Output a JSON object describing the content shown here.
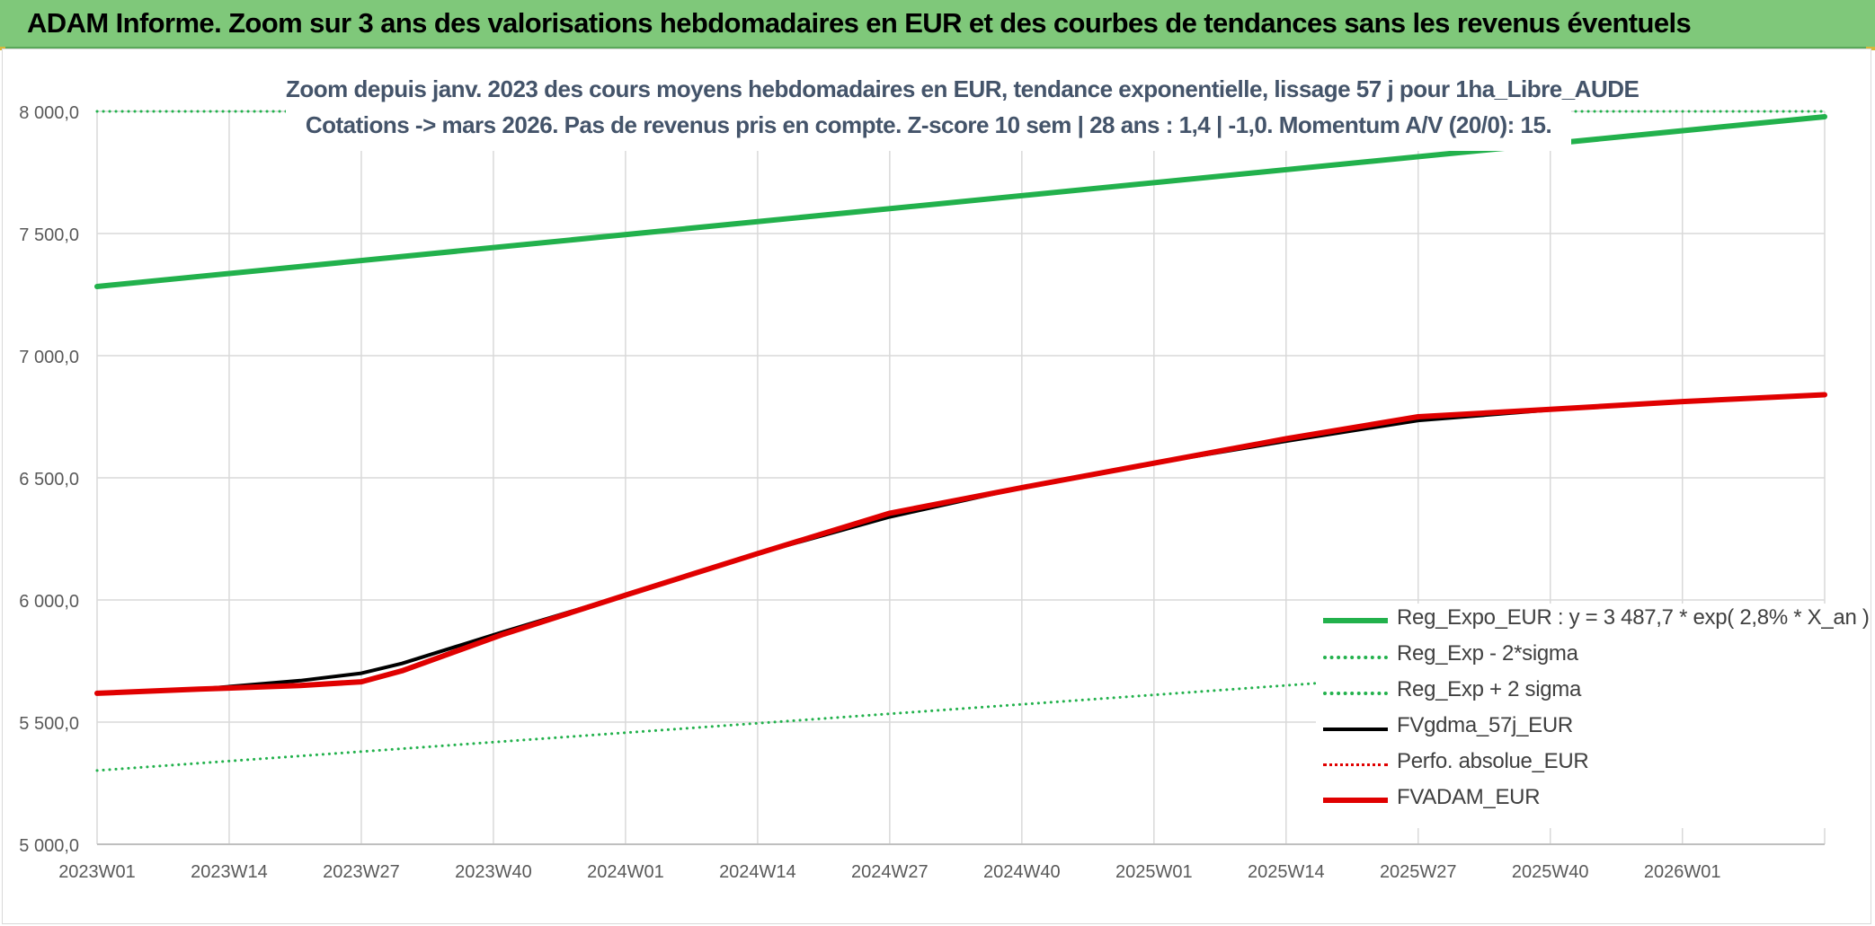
{
  "header": {
    "title": "ADAM Informe. Zoom sur 3 ans des valorisations hebdomadaires en EUR et des courbes de tendances sans les revenus éventuels"
  },
  "chart_data": {
    "type": "line",
    "title_lines": [
      "Zoom depuis janv. 2023 des cours moyens hebdomadaires en EUR, tendance exponentielle, lissage 57 j pour 1ha_Libre_AUDE",
      "Cotations -> mars 2026. Pas de revenus pris en compte. Z-score 10 sem | 28 ans : 1,4 | -1,0. Momentum A/V (20/0): 15."
    ],
    "x_tick_labels": [
      "2023W01",
      "2023W14",
      "2023W27",
      "2023W40",
      "2024W01",
      "2024W14",
      "2024W27",
      "2024W40",
      "2025W01",
      "2025W14",
      "2025W27",
      "2025W40",
      "2026W01"
    ],
    "y_tick_labels": [
      "8 000,0",
      "7 500,0",
      "7 000,0",
      "6 500,0",
      "6 000,0",
      "5 500,0",
      "5 000,0"
    ],
    "ylim": [
      5000,
      8000
    ],
    "grid": true,
    "legend_position": "bottom-right",
    "week_start": 0,
    "week_end": 170,
    "series": [
      {
        "name": "Reg_Expo_EUR : y = 3 487,7 * exp( 2,8% *  X_an )",
        "color": "#22b14c",
        "style": "solid",
        "width": 6,
        "points": [
          [
            0,
            7283
          ],
          [
            170,
            7978
          ]
        ]
      },
      {
        "name": "Reg_Exp - 2*sigma",
        "color": "#22b14c",
        "style": "dotted",
        "width": 3,
        "points": [
          [
            0,
            5302
          ],
          [
            170,
            5808
          ]
        ]
      },
      {
        "name": "Reg_Exp + 2 sigma",
        "color": "#22b14c",
        "style": "dotted",
        "width": 3,
        "points": [
          [
            0,
            8000
          ],
          [
            170,
            8000
          ]
        ]
      },
      {
        "name": "FVgdma_57j_EUR",
        "color": "#000000",
        "style": "solid",
        "width": 4,
        "points": [
          [
            0,
            5618
          ],
          [
            10,
            5635
          ],
          [
            20,
            5670
          ],
          [
            26,
            5700
          ],
          [
            30,
            5740
          ],
          [
            40,
            5870
          ],
          [
            52,
            6020
          ],
          [
            65,
            6190
          ],
          [
            78,
            6340
          ],
          [
            91,
            6460
          ],
          [
            104,
            6560
          ],
          [
            117,
            6650
          ],
          [
            130,
            6735
          ],
          [
            143,
            6778
          ],
          [
            156,
            6810
          ],
          [
            170,
            6838
          ]
        ]
      },
      {
        "name": "Perfo. absolue_EUR",
        "color": "#e00000",
        "style": "dotted",
        "width": 3,
        "points": [
          [
            0,
            5618
          ],
          [
            10,
            5635
          ],
          [
            20,
            5650
          ],
          [
            26,
            5665
          ],
          [
            30,
            5710
          ],
          [
            40,
            5860
          ],
          [
            52,
            6020
          ],
          [
            65,
            6190
          ],
          [
            78,
            6355
          ],
          [
            91,
            6460
          ],
          [
            104,
            6560
          ],
          [
            117,
            6660
          ],
          [
            130,
            6750
          ],
          [
            143,
            6780
          ],
          [
            156,
            6812
          ],
          [
            170,
            6840
          ]
        ]
      },
      {
        "name": "FVADAM_EUR",
        "color": "#e00000",
        "style": "solid",
        "width": 6,
        "points": [
          [
            0,
            5618
          ],
          [
            10,
            5635
          ],
          [
            20,
            5650
          ],
          [
            26,
            5665
          ],
          [
            30,
            5710
          ],
          [
            40,
            5860
          ],
          [
            52,
            6020
          ],
          [
            65,
            6190
          ],
          [
            78,
            6355
          ],
          [
            91,
            6460
          ],
          [
            104,
            6560
          ],
          [
            117,
            6660
          ],
          [
            130,
            6750
          ],
          [
            143,
            6780
          ],
          [
            156,
            6812
          ],
          [
            170,
            6840
          ]
        ]
      }
    ]
  }
}
